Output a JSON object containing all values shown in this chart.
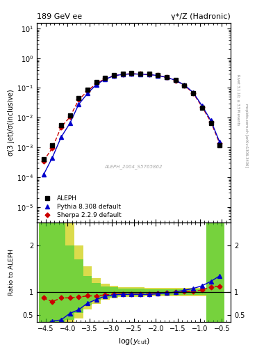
{
  "title_left": "189 GeV ee",
  "title_right": "γ*/Z (Hadronic)",
  "ylabel_main": "σ(3 jet)/σ(inclusive)",
  "ylabel_ratio": "Ratio to ALEPH",
  "xlabel": "log(y_{cut})",
  "watermark": "ALEPH_2004_S5765862",
  "right_label_top": "Rivet 3.1.10; ≥ 3.5M events",
  "right_label_bot": "mcplots.cern.ch [arXiv:1306.3436]",
  "xlim": [
    -4.7,
    -0.3
  ],
  "ylim_main_log": [
    3e-06,
    15
  ],
  "ylim_ratio": [
    0.35,
    2.5
  ],
  "log_ycut": [
    -4.55,
    -4.35,
    -4.15,
    -3.95,
    -3.75,
    -3.55,
    -3.35,
    -3.15,
    -2.95,
    -2.75,
    -2.55,
    -2.35,
    -2.15,
    -1.95,
    -1.75,
    -1.55,
    -1.35,
    -1.15,
    -0.95,
    -0.75,
    -0.55
  ],
  "aleph_y": [
    0.0004,
    0.0012,
    0.0055,
    0.012,
    0.045,
    0.085,
    0.155,
    0.215,
    0.27,
    0.3,
    0.31,
    0.305,
    0.295,
    0.27,
    0.23,
    0.18,
    0.12,
    0.065,
    0.022,
    0.0065,
    0.0012
  ],
  "pythia_y": [
    0.00012,
    0.00045,
    0.0022,
    0.0065,
    0.028,
    0.065,
    0.13,
    0.195,
    0.255,
    0.285,
    0.295,
    0.29,
    0.28,
    0.26,
    0.225,
    0.18,
    0.125,
    0.07,
    0.025,
    0.008,
    0.0015
  ],
  "sherpa_y": [
    0.00035,
    0.00095,
    0.0048,
    0.0105,
    0.04,
    0.078,
    0.142,
    0.202,
    0.257,
    0.288,
    0.297,
    0.292,
    0.283,
    0.263,
    0.226,
    0.179,
    0.121,
    0.066,
    0.023,
    0.0072,
    0.00135
  ],
  "pythia_ratio": [
    0.3,
    0.37,
    0.4,
    0.54,
    0.62,
    0.76,
    0.84,
    0.91,
    0.94,
    0.95,
    0.952,
    0.951,
    0.949,
    0.963,
    0.978,
    1.0,
    1.04,
    1.077,
    1.136,
    1.23,
    1.35
  ],
  "sherpa_ratio": [
    0.875,
    0.792,
    0.873,
    0.875,
    0.889,
    0.918,
    0.916,
    0.94,
    0.951,
    0.96,
    0.958,
    0.957,
    0.959,
    0.974,
    0.983,
    0.994,
    1.008,
    1.015,
    1.045,
    1.108,
    1.125
  ],
  "aleph_color": "#000000",
  "pythia_color": "#0000cc",
  "sherpa_color": "#cc0000",
  "green_color": "#33cc33",
  "yellow_color": "#cccc00",
  "band_edges": [
    -4.65,
    -4.45,
    -4.25,
    -4.05,
    -3.85,
    -3.65,
    -3.45,
    -3.25,
    -3.05,
    -2.85,
    -2.65,
    -2.45,
    -2.25,
    -2.05,
    -1.85,
    -1.65,
    -1.45,
    -1.25,
    -1.05,
    -0.85,
    -0.65,
    -0.45
  ],
  "green_lo": [
    0.35,
    0.35,
    0.35,
    0.4,
    0.55,
    0.72,
    0.82,
    0.88,
    0.9,
    0.92,
    0.93,
    0.93,
    0.935,
    0.935,
    0.935,
    0.935,
    0.935,
    0.935,
    0.935,
    0.35,
    0.35,
    0.35
  ],
  "green_hi": [
    2.5,
    2.5,
    2.5,
    2.0,
    1.7,
    1.35,
    1.2,
    1.12,
    1.1,
    1.08,
    1.07,
    1.07,
    1.065,
    1.065,
    1.065,
    1.065,
    1.065,
    1.065,
    1.065,
    2.5,
    2.5,
    2.5
  ],
  "yellow_lo": [
    0.35,
    0.35,
    0.35,
    0.35,
    0.43,
    0.62,
    0.75,
    0.83,
    0.87,
    0.89,
    0.9,
    0.9,
    0.905,
    0.905,
    0.905,
    0.905,
    0.905,
    0.905,
    0.905,
    0.35,
    0.35,
    0.35
  ],
  "yellow_hi": [
    2.5,
    2.5,
    2.5,
    2.5,
    2.0,
    1.55,
    1.3,
    1.18,
    1.13,
    1.11,
    1.1,
    1.1,
    1.095,
    1.095,
    1.095,
    1.095,
    1.095,
    1.095,
    1.095,
    2.5,
    2.5,
    2.5
  ]
}
